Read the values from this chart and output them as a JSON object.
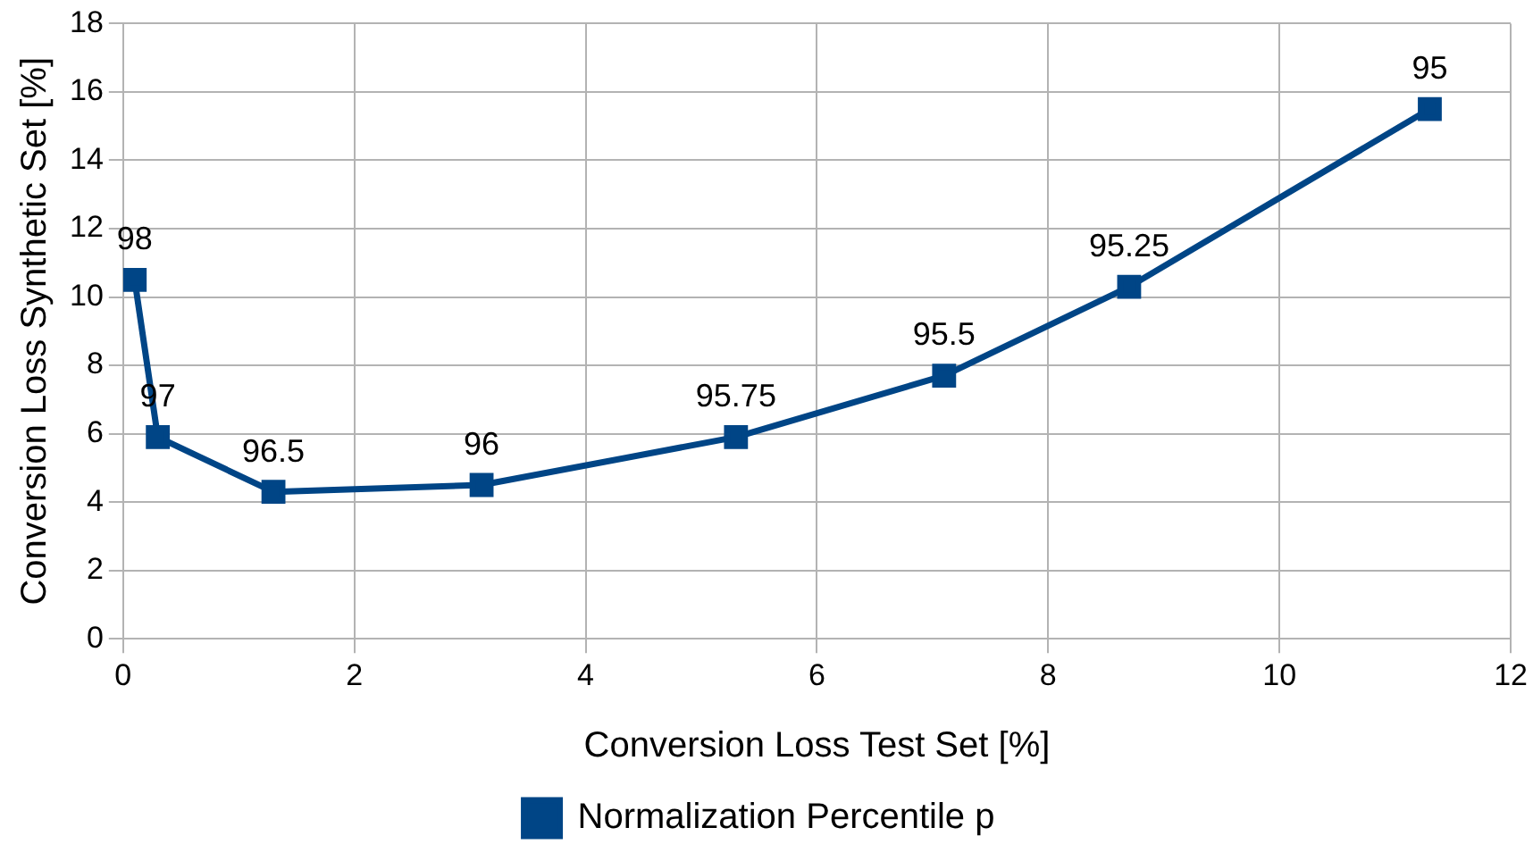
{
  "chart_data": {
    "type": "line",
    "xlabel": "Conversion Loss Test Set [%]",
    "ylabel": "Conversion Loss Synthetic Set [%]",
    "xlim": [
      0,
      12
    ],
    "xticks": [
      0,
      2,
      4,
      6,
      8,
      10,
      12
    ],
    "ylim": [
      0,
      18
    ],
    "yticks": [
      0,
      2,
      4,
      6,
      8,
      10,
      12,
      14,
      16,
      18
    ],
    "grid": true,
    "legend": "bottom",
    "marker": "square",
    "line_style": "solid",
    "series": [
      {
        "name": "Normalization Percentile p",
        "color": "#004586",
        "x": [
          0.1,
          0.3,
          1.3,
          3.1,
          5.3,
          7.1,
          8.7,
          11.3
        ],
        "values": [
          10.5,
          5.9,
          4.3,
          4.5,
          5.9,
          7.7,
          10.3,
          15.5
        ]
      }
    ],
    "annotations": [
      {
        "text": "98",
        "x": 0.1,
        "y": 10.5
      },
      {
        "text": "97",
        "x": 0.3,
        "y": 5.9
      },
      {
        "text": "96.5",
        "x": 1.3,
        "y": 4.3
      },
      {
        "text": "96",
        "x": 3.1,
        "y": 4.5
      },
      {
        "text": "95.75",
        "x": 5.3,
        "y": 5.9
      },
      {
        "text": "95.5",
        "x": 7.1,
        "y": 7.7
      },
      {
        "text": "95.25",
        "x": 8.7,
        "y": 10.3
      },
      {
        "text": "95",
        "x": 11.3,
        "y": 15.5
      }
    ]
  }
}
